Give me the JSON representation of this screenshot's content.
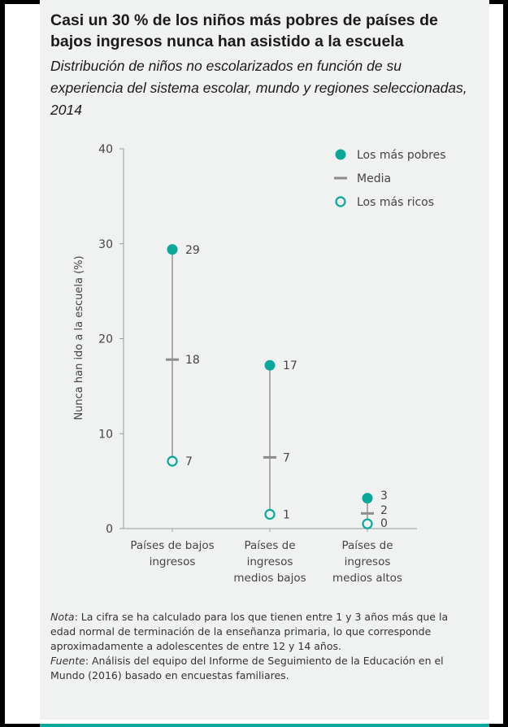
{
  "title": "Casi un 30 % de los niños más pobres de países de bajos ingresos nunca han asistido a la escuela",
  "subtitle": "Distribución de niños no escolarizados en función de su experiencia del sistema escolar, mundo y regiones seleccionadas, 2014",
  "chart_data": {
    "type": "dot-range",
    "ylabel": "Nunca han ido a la escuela (%)",
    "ylim": [
      0,
      40
    ],
    "yticks": [
      0,
      10,
      20,
      30,
      40
    ],
    "grid": false,
    "legend_position": "top-right",
    "categories": [
      [
        "Países de bajos",
        "ingresos"
      ],
      [
        "Países de",
        "ingresos",
        "medios bajos"
      ],
      [
        "Países de",
        "ingresos",
        "medios altos"
      ]
    ],
    "series": [
      {
        "name": "Los más pobres",
        "marker": "filled-circle",
        "values": [
          29.4,
          17.2,
          3.2
        ],
        "labels": [
          "29",
          "17",
          "3"
        ]
      },
      {
        "name": "Media",
        "marker": "dash",
        "values": [
          17.8,
          7.5,
          1.6
        ],
        "labels": [
          "18",
          "7",
          "2"
        ]
      },
      {
        "name": "Los más ricos",
        "marker": "open-circle",
        "values": [
          7.1,
          1.5,
          0.5
        ],
        "labels": [
          "7",
          "1",
          "0"
        ]
      }
    ],
    "colors": {
      "accent": "#0aa89a",
      "mean": "#8c8c8c",
      "axis": "#9a9a9a",
      "text": "#444444"
    }
  },
  "notes": {
    "note_label": "Nota",
    "note_text": ": La cifra se ha calculado para los que tienen entre 1 y 3 años más que la edad normal de terminación de la enseñanza primaria, lo que corresponde aproximadamente a adolescentes de entre 12 y 14 años.",
    "source_label": "Fuente",
    "source_text": ": Análisis del equipo del Informe de Seguimiento de la Educación en el Mundo (2016) basado en encuestas familiares."
  }
}
